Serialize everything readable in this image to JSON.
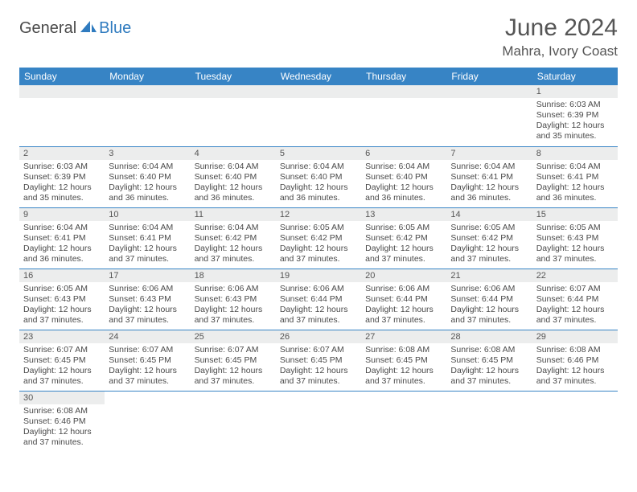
{
  "brand": {
    "word1": "General",
    "word2": "Blue"
  },
  "title": {
    "month": "June 2024",
    "location": "Mahra, Ivory Coast"
  },
  "colors": {
    "header_bg": "#3784c5",
    "header_text": "#ffffff",
    "daynum_bg": "#eceded",
    "text": "#4a4a4a",
    "rule": "#3784c5",
    "logo_dark": "#4a4a4a",
    "logo_blue": "#2f7bbf"
  },
  "weekdays": [
    "Sunday",
    "Monday",
    "Tuesday",
    "Wednesday",
    "Thursday",
    "Friday",
    "Saturday"
  ],
  "weeks": [
    [
      null,
      null,
      null,
      null,
      null,
      null,
      {
        "n": "1",
        "sr": "Sunrise: 6:03 AM",
        "ss": "Sunset: 6:39 PM",
        "d1": "Daylight: 12 hours",
        "d2": "and 35 minutes."
      }
    ],
    [
      {
        "n": "2",
        "sr": "Sunrise: 6:03 AM",
        "ss": "Sunset: 6:39 PM",
        "d1": "Daylight: 12 hours",
        "d2": "and 35 minutes."
      },
      {
        "n": "3",
        "sr": "Sunrise: 6:04 AM",
        "ss": "Sunset: 6:40 PM",
        "d1": "Daylight: 12 hours",
        "d2": "and 36 minutes."
      },
      {
        "n": "4",
        "sr": "Sunrise: 6:04 AM",
        "ss": "Sunset: 6:40 PM",
        "d1": "Daylight: 12 hours",
        "d2": "and 36 minutes."
      },
      {
        "n": "5",
        "sr": "Sunrise: 6:04 AM",
        "ss": "Sunset: 6:40 PM",
        "d1": "Daylight: 12 hours",
        "d2": "and 36 minutes."
      },
      {
        "n": "6",
        "sr": "Sunrise: 6:04 AM",
        "ss": "Sunset: 6:40 PM",
        "d1": "Daylight: 12 hours",
        "d2": "and 36 minutes."
      },
      {
        "n": "7",
        "sr": "Sunrise: 6:04 AM",
        "ss": "Sunset: 6:41 PM",
        "d1": "Daylight: 12 hours",
        "d2": "and 36 minutes."
      },
      {
        "n": "8",
        "sr": "Sunrise: 6:04 AM",
        "ss": "Sunset: 6:41 PM",
        "d1": "Daylight: 12 hours",
        "d2": "and 36 minutes."
      }
    ],
    [
      {
        "n": "9",
        "sr": "Sunrise: 6:04 AM",
        "ss": "Sunset: 6:41 PM",
        "d1": "Daylight: 12 hours",
        "d2": "and 36 minutes."
      },
      {
        "n": "10",
        "sr": "Sunrise: 6:04 AM",
        "ss": "Sunset: 6:41 PM",
        "d1": "Daylight: 12 hours",
        "d2": "and 37 minutes."
      },
      {
        "n": "11",
        "sr": "Sunrise: 6:04 AM",
        "ss": "Sunset: 6:42 PM",
        "d1": "Daylight: 12 hours",
        "d2": "and 37 minutes."
      },
      {
        "n": "12",
        "sr": "Sunrise: 6:05 AM",
        "ss": "Sunset: 6:42 PM",
        "d1": "Daylight: 12 hours",
        "d2": "and 37 minutes."
      },
      {
        "n": "13",
        "sr": "Sunrise: 6:05 AM",
        "ss": "Sunset: 6:42 PM",
        "d1": "Daylight: 12 hours",
        "d2": "and 37 minutes."
      },
      {
        "n": "14",
        "sr": "Sunrise: 6:05 AM",
        "ss": "Sunset: 6:42 PM",
        "d1": "Daylight: 12 hours",
        "d2": "and 37 minutes."
      },
      {
        "n": "15",
        "sr": "Sunrise: 6:05 AM",
        "ss": "Sunset: 6:43 PM",
        "d1": "Daylight: 12 hours",
        "d2": "and 37 minutes."
      }
    ],
    [
      {
        "n": "16",
        "sr": "Sunrise: 6:05 AM",
        "ss": "Sunset: 6:43 PM",
        "d1": "Daylight: 12 hours",
        "d2": "and 37 minutes."
      },
      {
        "n": "17",
        "sr": "Sunrise: 6:06 AM",
        "ss": "Sunset: 6:43 PM",
        "d1": "Daylight: 12 hours",
        "d2": "and 37 minutes."
      },
      {
        "n": "18",
        "sr": "Sunrise: 6:06 AM",
        "ss": "Sunset: 6:43 PM",
        "d1": "Daylight: 12 hours",
        "d2": "and 37 minutes."
      },
      {
        "n": "19",
        "sr": "Sunrise: 6:06 AM",
        "ss": "Sunset: 6:44 PM",
        "d1": "Daylight: 12 hours",
        "d2": "and 37 minutes."
      },
      {
        "n": "20",
        "sr": "Sunrise: 6:06 AM",
        "ss": "Sunset: 6:44 PM",
        "d1": "Daylight: 12 hours",
        "d2": "and 37 minutes."
      },
      {
        "n": "21",
        "sr": "Sunrise: 6:06 AM",
        "ss": "Sunset: 6:44 PM",
        "d1": "Daylight: 12 hours",
        "d2": "and 37 minutes."
      },
      {
        "n": "22",
        "sr": "Sunrise: 6:07 AM",
        "ss": "Sunset: 6:44 PM",
        "d1": "Daylight: 12 hours",
        "d2": "and 37 minutes."
      }
    ],
    [
      {
        "n": "23",
        "sr": "Sunrise: 6:07 AM",
        "ss": "Sunset: 6:45 PM",
        "d1": "Daylight: 12 hours",
        "d2": "and 37 minutes."
      },
      {
        "n": "24",
        "sr": "Sunrise: 6:07 AM",
        "ss": "Sunset: 6:45 PM",
        "d1": "Daylight: 12 hours",
        "d2": "and 37 minutes."
      },
      {
        "n": "25",
        "sr": "Sunrise: 6:07 AM",
        "ss": "Sunset: 6:45 PM",
        "d1": "Daylight: 12 hours",
        "d2": "and 37 minutes."
      },
      {
        "n": "26",
        "sr": "Sunrise: 6:07 AM",
        "ss": "Sunset: 6:45 PM",
        "d1": "Daylight: 12 hours",
        "d2": "and 37 minutes."
      },
      {
        "n": "27",
        "sr": "Sunrise: 6:08 AM",
        "ss": "Sunset: 6:45 PM",
        "d1": "Daylight: 12 hours",
        "d2": "and 37 minutes."
      },
      {
        "n": "28",
        "sr": "Sunrise: 6:08 AM",
        "ss": "Sunset: 6:45 PM",
        "d1": "Daylight: 12 hours",
        "d2": "and 37 minutes."
      },
      {
        "n": "29",
        "sr": "Sunrise: 6:08 AM",
        "ss": "Sunset: 6:46 PM",
        "d1": "Daylight: 12 hours",
        "d2": "and 37 minutes."
      }
    ],
    [
      {
        "n": "30",
        "sr": "Sunrise: 6:08 AM",
        "ss": "Sunset: 6:46 PM",
        "d1": "Daylight: 12 hours",
        "d2": "and 37 minutes."
      },
      null,
      null,
      null,
      null,
      null,
      null
    ]
  ]
}
